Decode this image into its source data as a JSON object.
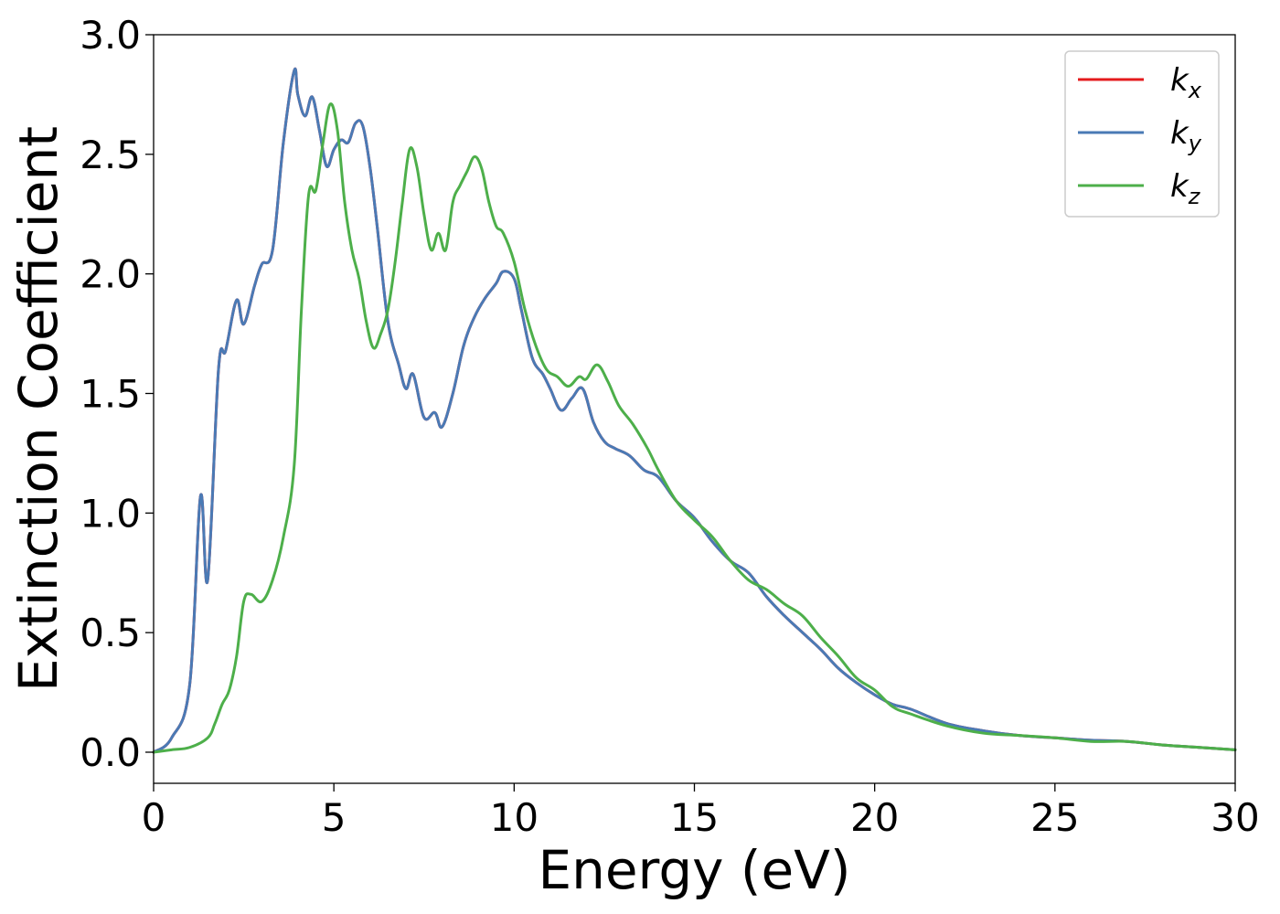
{
  "chart_data": {
    "type": "line",
    "xlabel": "Energy (eV)",
    "ylabel": "Extinction Coefficient",
    "xlim": [
      0,
      30
    ],
    "ylim": [
      -0.13,
      3.0
    ],
    "xticks": [
      0,
      5,
      10,
      15,
      20,
      25,
      30
    ],
    "yticks": [
      0.0,
      0.5,
      1.0,
      1.5,
      2.0,
      2.5,
      3.0
    ],
    "xtick_labels": [
      "0",
      "5",
      "10",
      "15",
      "20",
      "25",
      "30"
    ],
    "ytick_labels": [
      "0.0",
      "0.5",
      "1.0",
      "1.5",
      "2.0",
      "2.5",
      "3.0"
    ],
    "grid": false,
    "legend_position": "top-right",
    "series": [
      {
        "name": "k_x",
        "label_base": "k",
        "label_sub": "x",
        "color": "#e41a1c",
        "x": [
          0,
          0.5,
          1.0,
          1.3,
          1.5,
          1.8,
          2.0,
          2.3,
          2.5,
          2.8,
          3.0,
          3.3,
          3.6,
          3.9,
          4.0,
          4.2,
          4.4,
          4.6,
          4.8,
          5.0,
          5.2,
          5.4,
          5.6,
          5.8,
          6.0,
          6.2,
          6.5,
          6.8,
          7.0,
          7.2,
          7.5,
          7.8,
          8.0,
          8.3,
          8.6,
          8.9,
          9.2,
          9.5,
          9.7,
          10.0,
          10.2,
          10.5,
          10.8,
          11.0,
          11.3,
          11.6,
          11.9,
          12.2,
          12.5,
          12.8,
          13.2,
          13.6,
          14.0,
          14.5,
          15.0,
          15.5,
          16.0,
          16.5,
          17.0,
          17.5,
          18.0,
          18.5,
          19.0,
          19.5,
          20.0,
          20.5,
          21.0,
          22.0,
          23.0,
          24.0,
          25.0,
          26.0,
          27.0,
          28.0,
          29.0,
          30.0
        ],
        "y": [
          0.0,
          0.06,
          0.28,
          1.07,
          0.72,
          1.6,
          1.68,
          1.89,
          1.79,
          1.95,
          2.04,
          2.1,
          2.55,
          2.85,
          2.75,
          2.66,
          2.74,
          2.6,
          2.45,
          2.52,
          2.56,
          2.55,
          2.63,
          2.62,
          2.45,
          2.2,
          1.8,
          1.62,
          1.52,
          1.58,
          1.4,
          1.42,
          1.36,
          1.5,
          1.7,
          1.82,
          1.9,
          1.96,
          2.01,
          1.98,
          1.85,
          1.65,
          1.58,
          1.52,
          1.43,
          1.48,
          1.52,
          1.38,
          1.3,
          1.27,
          1.24,
          1.18,
          1.15,
          1.05,
          0.98,
          0.88,
          0.8,
          0.75,
          0.65,
          0.57,
          0.5,
          0.43,
          0.35,
          0.29,
          0.24,
          0.2,
          0.18,
          0.12,
          0.09,
          0.07,
          0.06,
          0.05,
          0.045,
          0.03,
          0.02,
          0.01
        ]
      },
      {
        "name": "k_y",
        "label_base": "k",
        "label_sub": "y",
        "color": "#4a7ab5",
        "x": [
          0,
          0.5,
          1.0,
          1.3,
          1.5,
          1.8,
          2.0,
          2.3,
          2.5,
          2.8,
          3.0,
          3.3,
          3.6,
          3.9,
          4.0,
          4.2,
          4.4,
          4.6,
          4.8,
          5.0,
          5.2,
          5.4,
          5.6,
          5.8,
          6.0,
          6.2,
          6.5,
          6.8,
          7.0,
          7.2,
          7.5,
          7.8,
          8.0,
          8.3,
          8.6,
          8.9,
          9.2,
          9.5,
          9.7,
          10.0,
          10.2,
          10.5,
          10.8,
          11.0,
          11.3,
          11.6,
          11.9,
          12.2,
          12.5,
          12.8,
          13.2,
          13.6,
          14.0,
          14.5,
          15.0,
          15.5,
          16.0,
          16.5,
          17.0,
          17.5,
          18.0,
          18.5,
          19.0,
          19.5,
          20.0,
          20.5,
          21.0,
          22.0,
          23.0,
          24.0,
          25.0,
          26.0,
          27.0,
          28.0,
          29.0,
          30.0
        ],
        "y": [
          0.0,
          0.06,
          0.28,
          1.07,
          0.72,
          1.6,
          1.68,
          1.89,
          1.79,
          1.95,
          2.04,
          2.1,
          2.55,
          2.85,
          2.75,
          2.66,
          2.74,
          2.6,
          2.45,
          2.52,
          2.56,
          2.55,
          2.63,
          2.62,
          2.45,
          2.2,
          1.8,
          1.62,
          1.52,
          1.58,
          1.4,
          1.42,
          1.36,
          1.5,
          1.7,
          1.82,
          1.9,
          1.96,
          2.01,
          1.98,
          1.85,
          1.65,
          1.58,
          1.52,
          1.43,
          1.48,
          1.52,
          1.38,
          1.3,
          1.27,
          1.24,
          1.18,
          1.15,
          1.05,
          0.98,
          0.88,
          0.8,
          0.75,
          0.65,
          0.57,
          0.5,
          0.43,
          0.35,
          0.29,
          0.24,
          0.2,
          0.18,
          0.12,
          0.09,
          0.07,
          0.06,
          0.05,
          0.045,
          0.03,
          0.02,
          0.01
        ]
      },
      {
        "name": "k_z",
        "label_base": "k",
        "label_sub": "z",
        "color": "#4daf4a",
        "x": [
          0,
          0.5,
          1.0,
          1.5,
          1.7,
          1.9,
          2.1,
          2.3,
          2.5,
          2.7,
          3.0,
          3.3,
          3.6,
          3.9,
          4.1,
          4.3,
          4.5,
          4.7,
          4.9,
          5.1,
          5.3,
          5.5,
          5.7,
          5.9,
          6.1,
          6.3,
          6.5,
          6.7,
          6.9,
          7.1,
          7.3,
          7.5,
          7.7,
          7.9,
          8.1,
          8.3,
          8.5,
          8.7,
          8.9,
          9.1,
          9.3,
          9.5,
          9.7,
          10.0,
          10.3,
          10.6,
          10.9,
          11.2,
          11.5,
          11.8,
          12.0,
          12.3,
          12.6,
          12.9,
          13.3,
          13.7,
          14.0,
          14.5,
          15.0,
          15.5,
          16.0,
          16.5,
          17.0,
          17.5,
          18.0,
          18.5,
          19.0,
          19.5,
          20.0,
          20.5,
          21.0,
          22.0,
          23.0,
          24.0,
          25.0,
          26.0,
          27.0,
          28.0,
          29.0,
          30.0
        ],
        "y": [
          0.0,
          0.01,
          0.02,
          0.06,
          0.12,
          0.2,
          0.26,
          0.4,
          0.63,
          0.66,
          0.63,
          0.72,
          0.9,
          1.2,
          1.85,
          2.33,
          2.35,
          2.55,
          2.71,
          2.6,
          2.3,
          2.1,
          1.98,
          1.8,
          1.69,
          1.75,
          1.85,
          2.05,
          2.3,
          2.52,
          2.45,
          2.25,
          2.1,
          2.17,
          2.1,
          2.3,
          2.37,
          2.43,
          2.49,
          2.44,
          2.3,
          2.2,
          2.17,
          2.05,
          1.85,
          1.7,
          1.6,
          1.57,
          1.53,
          1.57,
          1.56,
          1.62,
          1.55,
          1.45,
          1.37,
          1.27,
          1.18,
          1.05,
          0.97,
          0.9,
          0.8,
          0.72,
          0.68,
          0.62,
          0.57,
          0.48,
          0.4,
          0.31,
          0.26,
          0.19,
          0.16,
          0.11,
          0.08,
          0.07,
          0.06,
          0.045,
          0.045,
          0.03,
          0.02,
          0.01
        ]
      }
    ]
  }
}
